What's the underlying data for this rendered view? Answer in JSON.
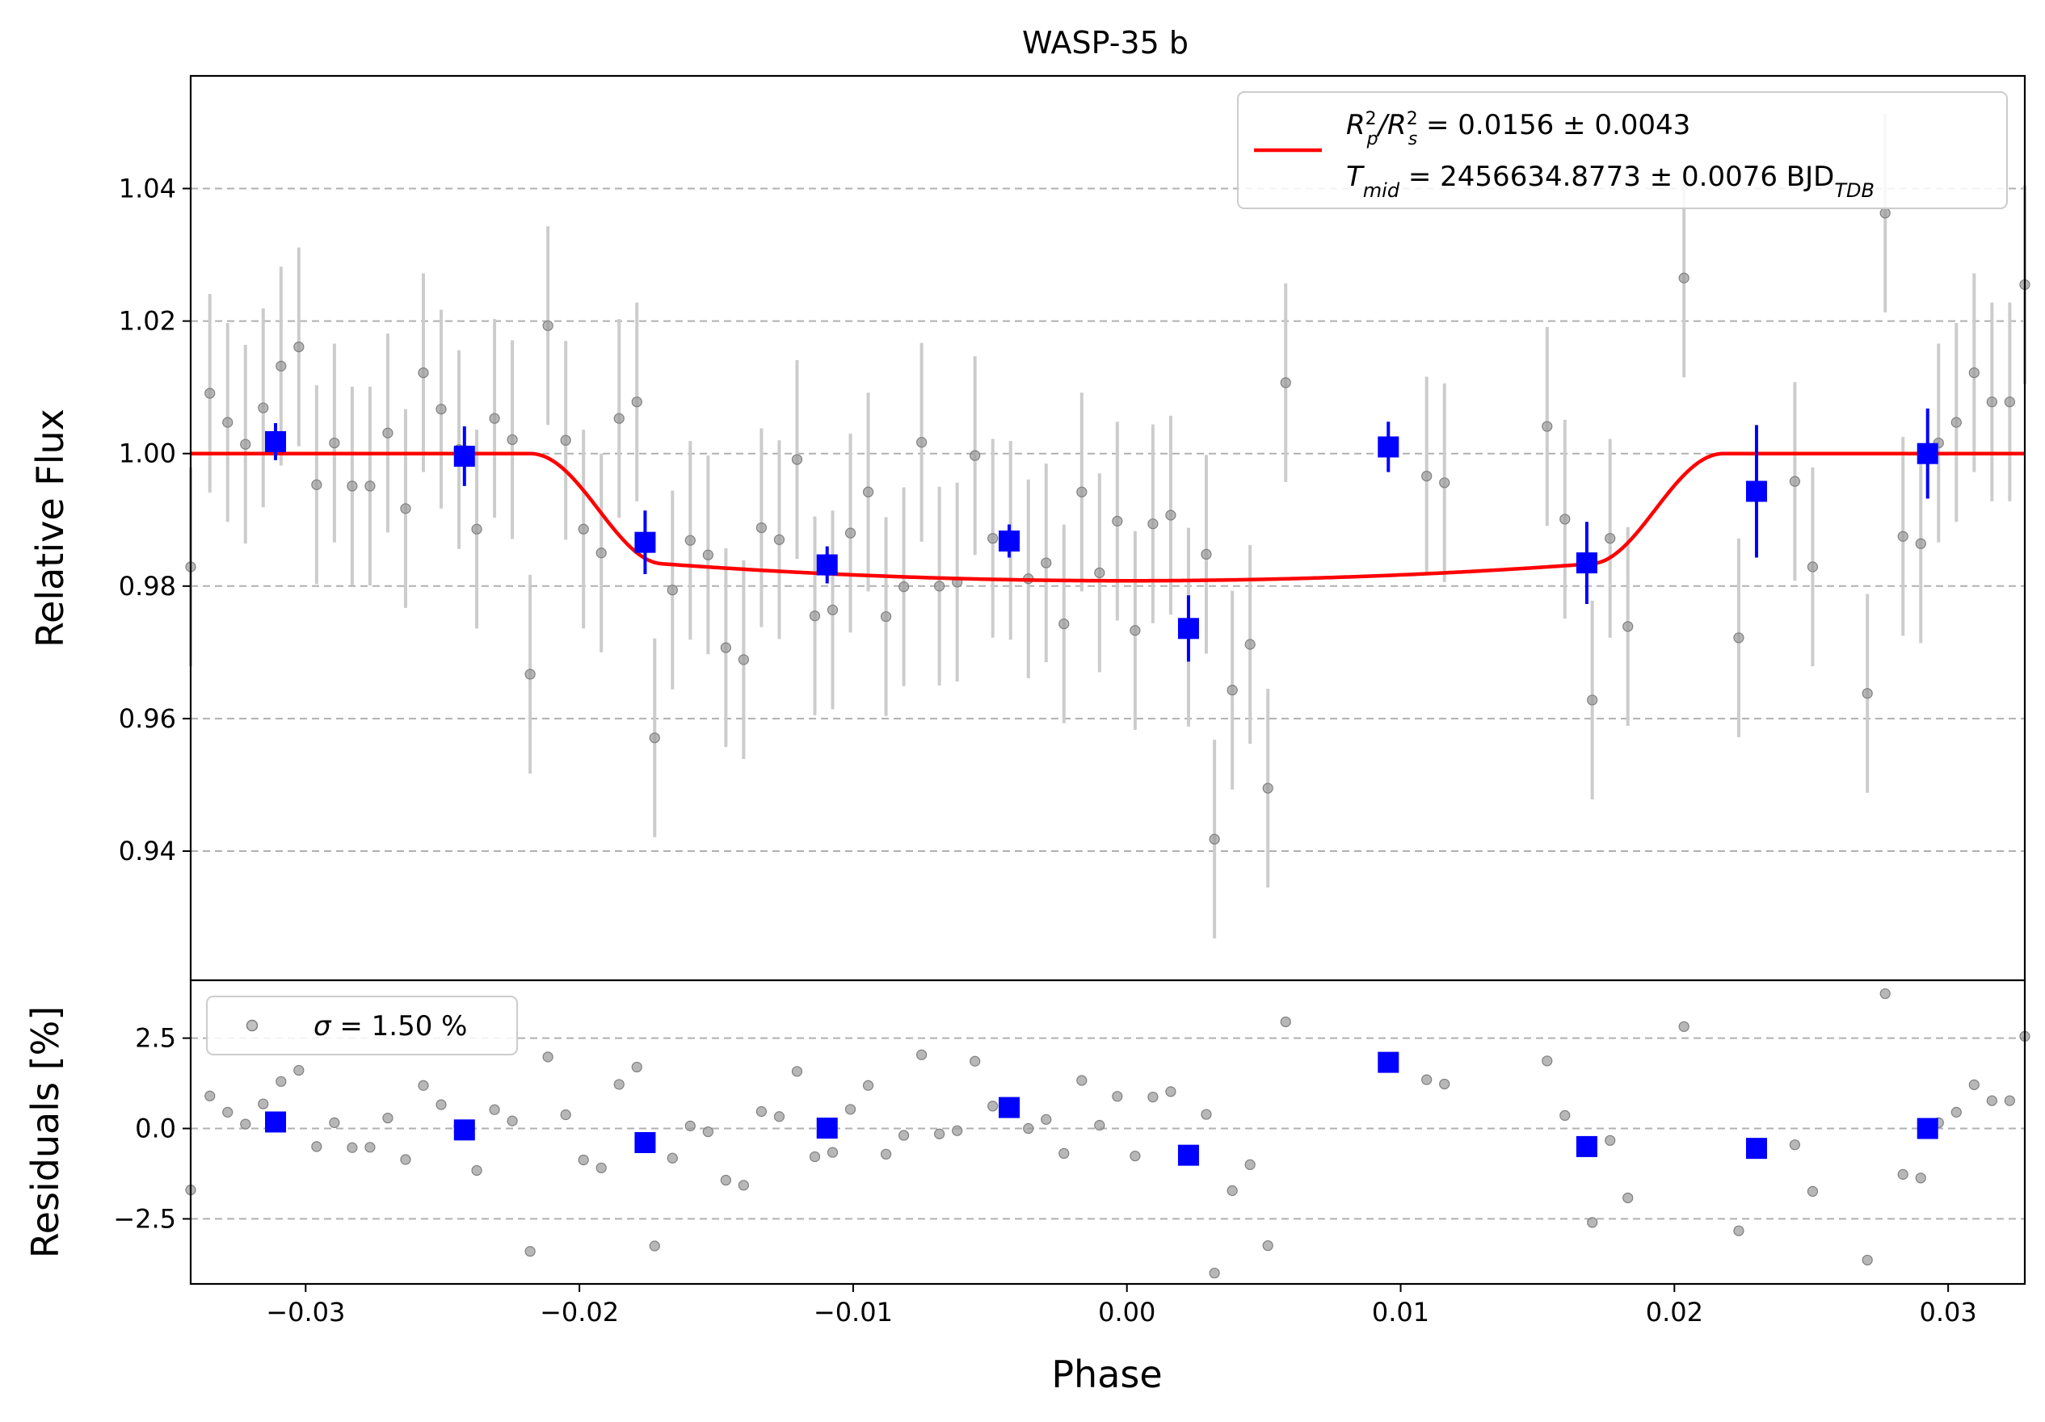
{
  "chart_data": {
    "type": "scatter",
    "title": "WASP-35 b",
    "xlabel": "Phase",
    "top_panel": {
      "ylabel": "Relative Flux",
      "ylim": [
        0.9205,
        1.057
      ],
      "yticks": [
        0.94,
        0.96,
        0.98,
        1.0,
        1.02,
        1.04
      ],
      "ytick_labels": [
        "0.94",
        "0.96",
        "0.98",
        "1.00",
        "1.02",
        "1.04"
      ],
      "grid": "horizontal dashed",
      "legend": {
        "placement": "top-right",
        "line1_base": "R",
        "line1_text": "/R",
        "line1_value": " = 0.0156 ± 0.0043",
        "sub_p": "p",
        "sub_s": "s",
        "sup_2": "2",
        "line2_base": "T",
        "line2_sub": "mid",
        "line2_value": " = 2456634.8773 ± 0.0076 BJD",
        "line2_unit_sub": "TDB"
      }
    },
    "bottom_panel": {
      "ylabel": "Residuals [%]",
      "ylim": [
        -4.3,
        4.1
      ],
      "yticks": [
        -2.5,
        0.0,
        2.5
      ],
      "ytick_labels": [
        "−2.5",
        "0.0",
        "2.5"
      ],
      "grid": "horizontal dashed",
      "legend": {
        "placement": "top-left",
        "sigma_symbol": "σ",
        "sigma_text": " = 1.50 %"
      }
    },
    "xlim": [
      -0.0342,
      0.0328
    ],
    "xticks": [
      -0.03,
      -0.02,
      -0.01,
      0.0,
      0.01,
      0.02,
      0.03
    ],
    "xtick_labels": [
      "−0.03",
      "−0.02",
      "−0.01",
      "0.00",
      "0.01",
      "0.02",
      "0.03"
    ],
    "colors": {
      "raw": "#999999",
      "raw_err": "#cccccc",
      "binned": "#0000ff",
      "model": "#ff0000",
      "grid": "#b0b0b0"
    },
    "model": {
      "name": "transit model",
      "depth": 0.0192,
      "ingress_start": -0.0218,
      "ingress_end": -0.017,
      "egress_start": 0.0168,
      "egress_end": 0.0218,
      "limb_coef": 0.22
    },
    "raw_points": [
      {
        "x": -0.0342,
        "y": 0.9829,
        "e": 0.015,
        "r": -1.7
      },
      {
        "x": -0.0335,
        "y": 1.0091,
        "e": 0.015,
        "r": 0.9
      },
      {
        "x": -0.03285,
        "y": 1.0047,
        "e": 0.015,
        "r": 0.45
      },
      {
        "x": -0.0322,
        "y": 1.0014,
        "e": 0.015,
        "r": 0.12
      },
      {
        "x": -0.03155,
        "y": 1.0069,
        "e": 0.015,
        "r": 0.68
      },
      {
        "x": -0.0309,
        "y": 1.0132,
        "e": 0.015,
        "r": 1.3
      },
      {
        "x": -0.03025,
        "y": 1.0161,
        "e": 0.015,
        "r": 1.61
      },
      {
        "x": -0.0296,
        "y": 0.9953,
        "e": 0.015,
        "r": -0.5
      },
      {
        "x": -0.02895,
        "y": 1.0016,
        "e": 0.015,
        "r": 0.16
      },
      {
        "x": -0.0283,
        "y": 0.9951,
        "e": 0.015,
        "r": -0.53
      },
      {
        "x": -0.02765,
        "y": 0.9951,
        "e": 0.015,
        "r": -0.52
      },
      {
        "x": -0.027,
        "y": 1.0031,
        "e": 0.015,
        "r": 0.29
      },
      {
        "x": -0.02635,
        "y": 0.9917,
        "e": 0.015,
        "r": -0.86
      },
      {
        "x": -0.0257,
        "y": 1.0122,
        "e": 0.015,
        "r": 1.19
      },
      {
        "x": -0.02505,
        "y": 1.0067,
        "e": 0.015,
        "r": 0.66
      },
      {
        "x": -0.0244,
        "y": 1.0006,
        "e": 0.015,
        "r": 0.06
      },
      {
        "x": -0.02375,
        "y": 0.9886,
        "e": 0.015,
        "r": -1.16
      },
      {
        "x": -0.0231,
        "y": 1.0053,
        "e": 0.015,
        "r": 0.52
      },
      {
        "x": -0.02245,
        "y": 1.0021,
        "e": 0.015,
        "r": 0.21
      },
      {
        "x": -0.0218,
        "y": 0.9667,
        "e": 0.015,
        "r": -3.4
      },
      {
        "x": -0.02115,
        "y": 1.0193,
        "e": 0.015,
        "r": 1.98
      },
      {
        "x": -0.0205,
        "y": 1.002,
        "e": 0.015,
        "r": 0.38
      },
      {
        "x": -0.01985,
        "y": 0.9886,
        "e": 0.015,
        "r": -0.87
      },
      {
        "x": -0.0192,
        "y": 0.985,
        "e": 0.015,
        "r": -1.09
      },
      {
        "x": -0.01855,
        "y": 1.0053,
        "e": 0.015,
        "r": 1.22
      },
      {
        "x": -0.0179,
        "y": 1.0078,
        "e": 0.015,
        "r": 1.7
      },
      {
        "x": -0.01725,
        "y": 0.9571,
        "e": 0.015,
        "r": -3.25
      },
      {
        "x": -0.0166,
        "y": 0.9794,
        "e": 0.015,
        "r": -0.82
      },
      {
        "x": -0.01595,
        "y": 0.9869,
        "e": 0.015,
        "r": 0.07
      },
      {
        "x": -0.0153,
        "y": 0.9847,
        "e": 0.015,
        "r": -0.09
      },
      {
        "x": -0.01465,
        "y": 0.9707,
        "e": 0.015,
        "r": -1.43
      },
      {
        "x": -0.014,
        "y": 0.9689,
        "e": 0.015,
        "r": -1.57
      },
      {
        "x": -0.01335,
        "y": 0.9888,
        "e": 0.015,
        "r": 0.47
      },
      {
        "x": -0.0127,
        "y": 0.987,
        "e": 0.015,
        "r": 0.33
      },
      {
        "x": -0.01205,
        "y": 0.9991,
        "e": 0.015,
        "r": 1.58
      },
      {
        "x": -0.0114,
        "y": 0.9755,
        "e": 0.015,
        "r": -0.78
      },
      {
        "x": -0.01075,
        "y": 0.9764,
        "e": 0.015,
        "r": -0.66
      },
      {
        "x": -0.0101,
        "y": 0.988,
        "e": 0.015,
        "r": 0.53
      },
      {
        "x": -0.00945,
        "y": 0.9942,
        "e": 0.015,
        "r": 1.19
      },
      {
        "x": -0.0088,
        "y": 0.9754,
        "e": 0.015,
        "r": -0.71
      },
      {
        "x": -0.00815,
        "y": 0.9799,
        "e": 0.015,
        "r": -0.19
      },
      {
        "x": -0.0075,
        "y": 1.0017,
        "e": 0.015,
        "r": 2.04
      },
      {
        "x": -0.00685,
        "y": 0.98,
        "e": 0.015,
        "r": -0.15
      },
      {
        "x": -0.0062,
        "y": 0.9806,
        "e": 0.015,
        "r": -0.06
      },
      {
        "x": -0.00555,
        "y": 0.9997,
        "e": 0.015,
        "r": 1.86
      },
      {
        "x": -0.0049,
        "y": 0.9872,
        "e": 0.015,
        "r": 0.62
      },
      {
        "x": -0.00425,
        "y": 0.9869,
        "e": 0.015,
        "r": 0.59
      },
      {
        "x": -0.0036,
        "y": 0.9811,
        "e": 0.015,
        "r": 0.0
      },
      {
        "x": -0.00295,
        "y": 0.9835,
        "e": 0.015,
        "r": 0.25
      },
      {
        "x": -0.0023,
        "y": 0.9743,
        "e": 0.015,
        "r": -0.69
      },
      {
        "x": -0.00165,
        "y": 0.9942,
        "e": 0.015,
        "r": 1.33
      },
      {
        "x": -0.001,
        "y": 0.982,
        "e": 0.015,
        "r": 0.09
      },
      {
        "x": -0.00035,
        "y": 0.9898,
        "e": 0.015,
        "r": 0.89
      },
      {
        "x": 0.0003,
        "y": 0.9733,
        "e": 0.015,
        "r": -0.76
      },
      {
        "x": 0.00095,
        "y": 0.9894,
        "e": 0.015,
        "r": 0.87
      },
      {
        "x": 0.0016,
        "y": 0.9907,
        "e": 0.015,
        "r": 1.02
      },
      {
        "x": 0.00225,
        "y": 0.9738,
        "e": 0.015,
        "r": -0.71
      },
      {
        "x": 0.0029,
        "y": 0.9848,
        "e": 0.015,
        "r": 0.39
      },
      {
        "x": 0.0032,
        "y": 0.9418,
        "e": 0.015,
        "r": -4.0
      },
      {
        "x": 0.00385,
        "y": 0.9643,
        "e": 0.015,
        "r": -1.72
      },
      {
        "x": 0.0045,
        "y": 0.9712,
        "e": 0.015,
        "r": -1.0
      },
      {
        "x": 0.00515,
        "y": 0.9495,
        "e": 0.015,
        "r": -3.24
      },
      {
        "x": 0.0058,
        "y": 1.0107,
        "e": 0.015,
        "r": 2.95
      },
      {
        "x": 0.01095,
        "y": 0.9966,
        "e": 0.015,
        "r": 1.35
      },
      {
        "x": 0.0116,
        "y": 0.9956,
        "e": 0.015,
        "r": 1.23
      },
      {
        "x": 0.01535,
        "y": 1.0041,
        "e": 0.015,
        "r": 1.87
      },
      {
        "x": 0.016,
        "y": 0.9901,
        "e": 0.015,
        "r": 0.36
      },
      {
        "x": 0.017,
        "y": 0.9628,
        "e": 0.015,
        "r": -2.6
      },
      {
        "x": 0.01765,
        "y": 0.9872,
        "e": 0.015,
        "r": -0.33
      },
      {
        "x": 0.0183,
        "y": 0.9739,
        "e": 0.015,
        "r": -1.92
      },
      {
        "x": 0.02035,
        "y": 1.0265,
        "e": 0.015,
        "r": 2.82
      },
      {
        "x": 0.02235,
        "y": 0.9722,
        "e": 0.015,
        "r": -2.83
      },
      {
        "x": 0.0244,
        "y": 0.9958,
        "e": 0.015,
        "r": -0.45
      },
      {
        "x": 0.02505,
        "y": 0.9829,
        "e": 0.015,
        "r": -1.74
      },
      {
        "x": 0.02705,
        "y": 0.9638,
        "e": 0.015,
        "r": -3.64
      },
      {
        "x": 0.0277,
        "y": 1.0363,
        "e": 0.015,
        "r": 3.73
      },
      {
        "x": 0.02835,
        "y": 0.9875,
        "e": 0.015,
        "r": -1.27
      },
      {
        "x": 0.029,
        "y": 0.9864,
        "e": 0.015,
        "r": -1.37
      },
      {
        "x": 0.02965,
        "y": 1.0016,
        "e": 0.015,
        "r": 0.16
      },
      {
        "x": 0.0303,
        "y": 1.0047,
        "e": 0.015,
        "r": 0.45
      },
      {
        "x": 0.03095,
        "y": 1.0122,
        "e": 0.015,
        "r": 1.21
      },
      {
        "x": 0.0316,
        "y": 1.0078,
        "e": 0.015,
        "r": 0.77
      },
      {
        "x": 0.03225,
        "y": 1.0078,
        "e": 0.015,
        "r": 0.77
      },
      {
        "x": 0.0328,
        "y": 1.0255,
        "e": 0.015,
        "r": 2.55
      }
    ],
    "binned_points": [
      {
        "x": -0.0311,
        "y": 1.0018,
        "e": 0.0028,
        "r": 0.18
      },
      {
        "x": -0.0242,
        "y": 0.9996,
        "e": 0.0045,
        "r": -0.04
      },
      {
        "x": -0.0176,
        "y": 0.9866,
        "e": 0.0048,
        "r": -0.39
      },
      {
        "x": -0.01095,
        "y": 0.9832,
        "e": 0.0028,
        "r": 0.01
      },
      {
        "x": -0.0043,
        "y": 0.9868,
        "e": 0.0025,
        "r": 0.58
      },
      {
        "x": 0.00225,
        "y": 0.9736,
        "e": 0.005,
        "r": -0.74
      },
      {
        "x": 0.00955,
        "y": 1.001,
        "e": 0.0038,
        "r": 1.83
      },
      {
        "x": 0.0168,
        "y": 0.9835,
        "e": 0.0062,
        "r": -0.5
      },
      {
        "x": 0.023,
        "y": 0.9943,
        "e": 0.01,
        "r": -0.55
      },
      {
        "x": 0.02925,
        "y": 1.0,
        "e": 0.0068,
        "r": 0.0
      }
    ]
  }
}
